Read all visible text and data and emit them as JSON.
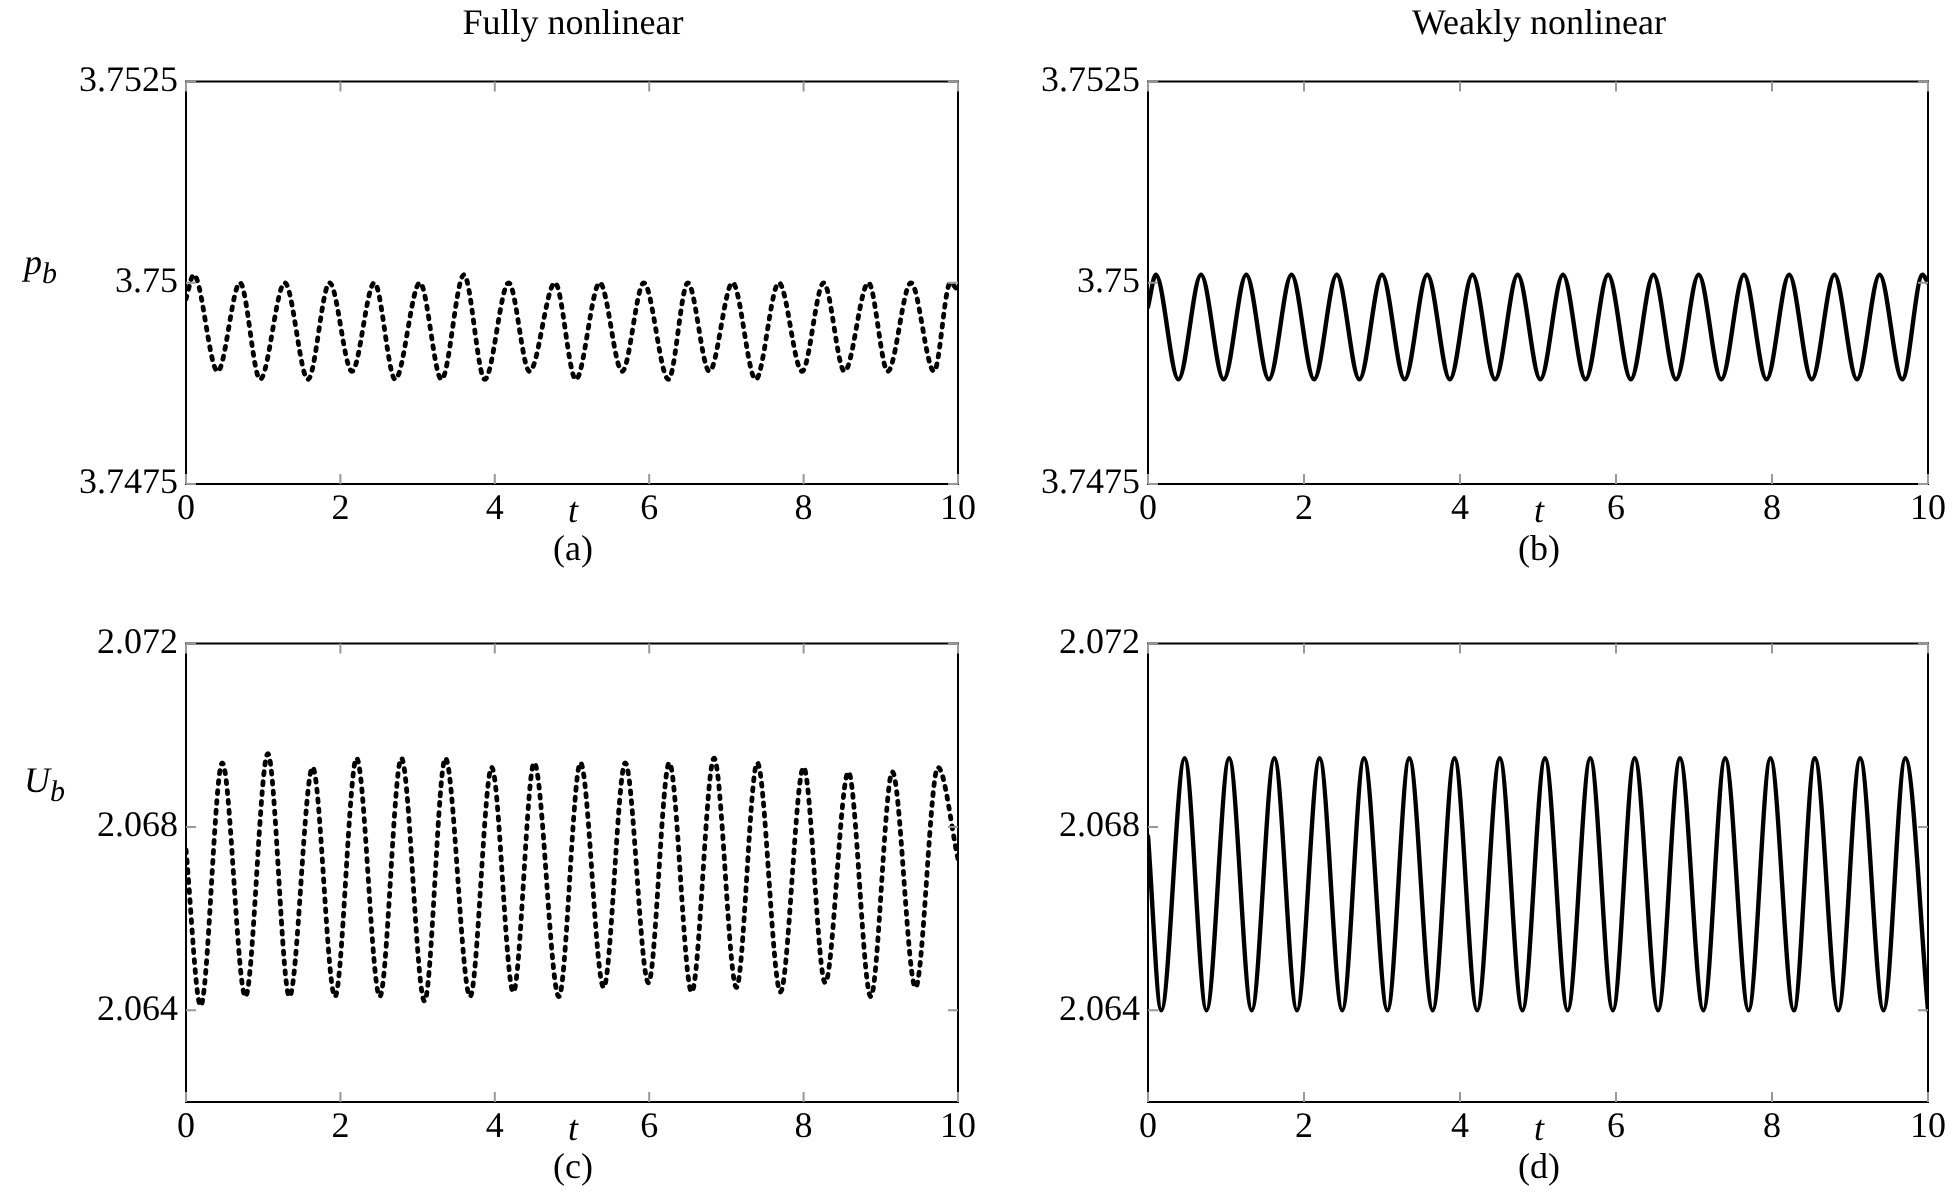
{
  "chart_data": [
    {
      "type": "line",
      "title": "Fully nonlinear",
      "xlabel": "t",
      "ylabel": "p$_{b}$",
      "annotations": [
        "(a)"
      ],
      "line_style": "dotted",
      "xlim": [
        0,
        10
      ],
      "xticks": [
        0,
        2,
        4,
        6,
        8,
        10
      ],
      "ylim": [
        3.7475,
        3.7525
      ],
      "yticks": [
        3.7475,
        3.75,
        3.7525
      ],
      "series": [
        {
          "color": "#000000",
          "x": [
            0,
            0.1,
            0.41,
            0.7,
            0.96,
            1.28,
            1.58,
            1.86,
            2.15,
            2.44,
            2.71,
            3.03,
            3.31,
            3.6,
            3.87,
            4.18,
            4.45,
            4.78,
            5.05,
            5.36,
            5.65,
            5.93,
            6.25,
            6.5,
            6.78,
            7.08,
            7.38,
            7.68,
            7.98,
            8.26,
            8.53,
            8.84,
            9.09,
            9.39,
            9.69,
            9.9,
            10
          ],
          "values": [
            3.7498,
            3.7501,
            3.7489,
            3.75,
            3.7488,
            3.75,
            3.7488,
            3.75,
            3.7489,
            3.75,
            3.7488,
            3.75,
            3.7488,
            3.7501,
            3.7488,
            3.75,
            3.7489,
            3.75,
            3.7488,
            3.75,
            3.7489,
            3.75,
            3.7488,
            3.75,
            3.7489,
            3.75,
            3.7488,
            3.75,
            3.7489,
            3.75,
            3.7489,
            3.75,
            3.7489,
            3.75,
            3.7489,
            3.75,
            3.7499
          ]
        }
      ]
    },
    {
      "type": "line",
      "title": "Weakly nonlinear",
      "xlabel": "t",
      "annotations": [
        "(b)"
      ],
      "line_style": "solid",
      "xlim": [
        0,
        10
      ],
      "xticks": [
        0,
        2,
        4,
        6,
        8,
        10
      ],
      "ylim": [
        3.7475,
        3.7525
      ],
      "yticks": [
        3.7475,
        3.75,
        3.7525
      ],
      "series": [
        {
          "color": "#000000",
          "x": [
            0,
            0.1,
            0.39,
            0.68,
            0.97,
            1.26,
            1.55,
            1.84,
            2.13,
            2.42,
            2.71,
            3.0,
            3.29,
            3.58,
            3.87,
            4.16,
            4.45,
            4.74,
            5.03,
            5.32,
            5.61,
            5.9,
            6.19,
            6.48,
            6.77,
            7.06,
            7.35,
            7.64,
            7.93,
            8.22,
            8.51,
            8.8,
            9.09,
            9.38,
            9.67,
            9.93,
            10
          ],
          "values": [
            3.7497,
            3.7501,
            3.7488,
            3.7501,
            3.7488,
            3.7501,
            3.7488,
            3.7501,
            3.7488,
            3.7501,
            3.7488,
            3.7501,
            3.7488,
            3.7501,
            3.7488,
            3.7501,
            3.7488,
            3.7501,
            3.7488,
            3.7501,
            3.7488,
            3.7501,
            3.7488,
            3.7501,
            3.7488,
            3.7501,
            3.7488,
            3.7501,
            3.7488,
            3.7501,
            3.7488,
            3.7501,
            3.7488,
            3.7501,
            3.7488,
            3.7501,
            3.75
          ]
        }
      ]
    },
    {
      "type": "line",
      "xlabel": "t",
      "ylabel": "U$_{b}$",
      "annotations": [
        "(c)"
      ],
      "line_style": "dotted",
      "xlim": [
        0,
        10
      ],
      "xticks": [
        0,
        2,
        4,
        6,
        8,
        10
      ],
      "ylim": [
        2.062,
        2.072
      ],
      "yticks": [
        2.064,
        2.068,
        2.072
      ],
      "series": [
        {
          "color": "#000000",
          "x": [
            0,
            0.19,
            0.47,
            0.77,
            1.06,
            1.34,
            1.64,
            1.93,
            2.21,
            2.51,
            2.79,
            3.09,
            3.36,
            3.68,
            3.96,
            4.24,
            4.51,
            4.83,
            5.11,
            5.41,
            5.69,
            5.99,
            6.26,
            6.55,
            6.84,
            7.13,
            7.4,
            7.7,
            8.0,
            8.28,
            8.58,
            8.87,
            9.15,
            9.45,
            9.74,
            10
          ],
          "values": [
            2.0675,
            2.0641,
            2.0694,
            2.0643,
            2.0696,
            2.0643,
            2.0693,
            2.0643,
            2.0695,
            2.0643,
            2.0695,
            2.0642,
            2.0695,
            2.0643,
            2.0693,
            2.0644,
            2.0694,
            2.0643,
            2.0694,
            2.0645,
            2.0694,
            2.0646,
            2.0694,
            2.0644,
            2.0695,
            2.0645,
            2.0694,
            2.0644,
            2.0693,
            2.0646,
            2.0692,
            2.0643,
            2.0692,
            2.0645,
            2.0693,
            2.0673
          ]
        }
      ]
    },
    {
      "type": "line",
      "xlabel": "t",
      "annotations": [
        "(d)"
      ],
      "line_style": "solid",
      "xlim": [
        0,
        10
      ],
      "xticks": [
        0,
        2,
        4,
        6,
        8,
        10
      ],
      "ylim": [
        2.062,
        2.072
      ],
      "yticks": [
        2.064,
        2.068,
        2.072
      ],
      "series": [
        {
          "color": "#000000",
          "x": [
            0,
            0.17,
            0.47,
            0.75,
            1.04,
            1.33,
            1.62,
            1.91,
            2.2,
            2.49,
            2.77,
            3.07,
            3.35,
            3.65,
            3.93,
            4.22,
            4.51,
            4.8,
            5.09,
            5.38,
            5.67,
            5.96,
            6.24,
            6.54,
            6.82,
            7.12,
            7.4,
            7.7,
            7.98,
            8.28,
            8.55,
            8.85,
            9.13,
            9.43,
            9.71,
            10
          ],
          "values": [
            2.0678,
            2.064,
            2.0695,
            2.064,
            2.0695,
            2.064,
            2.0695,
            2.064,
            2.0695,
            2.064,
            2.0695,
            2.064,
            2.0695,
            2.064,
            2.0695,
            2.064,
            2.0695,
            2.064,
            2.0695,
            2.064,
            2.0695,
            2.064,
            2.0695,
            2.064,
            2.0695,
            2.064,
            2.0695,
            2.064,
            2.0695,
            2.064,
            2.0695,
            2.064,
            2.0695,
            2.064,
            2.0695,
            2.064
          ]
        }
      ]
    }
  ]
}
